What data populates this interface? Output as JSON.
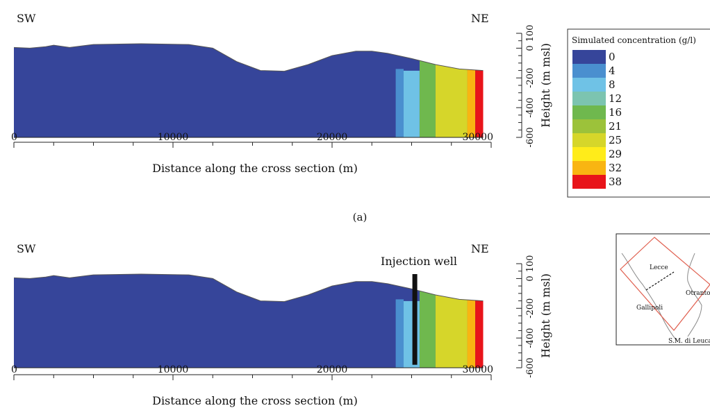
{
  "colors": {
    "blue": "#36459a",
    "outline": "#555555",
    "legend_border": "#333333",
    "map_border": "#e06050",
    "map_coast": "#888888",
    "well": "#111111"
  },
  "panels": [
    {
      "id": "a",
      "left_label": "SW",
      "right_label": "NE",
      "caption": "(a)",
      "xlabel": "Distance along the cross section (m)",
      "ylabel": "Height (m msl)",
      "x_ticks": [
        "0",
        "10000",
        "20000",
        "30000"
      ],
      "y_ticks": [
        "100",
        "0",
        "-200",
        "-400",
        "-600"
      ],
      "well_label": "",
      "injection_well_x": null
    },
    {
      "id": "b",
      "left_label": "SW",
      "right_label": "NE",
      "caption": "",
      "xlabel": "Distance along the cross section (m)",
      "ylabel": "Height (m msl)",
      "x_ticks": [
        "0",
        "10000",
        "20000",
        "30000"
      ],
      "y_ticks": [
        "100",
        "0",
        "-200",
        "-400",
        "-600"
      ],
      "well_label": "Injection well",
      "injection_well_x": 25200
    }
  ],
  "legend": {
    "title": "Simulated concentration (g/l)",
    "items": [
      {
        "label": "0",
        "color": "#36459a"
      },
      {
        "label": "4",
        "color": "#4a8fcf"
      },
      {
        "label": "8",
        "color": "#6fc2e6"
      },
      {
        "label": "12",
        "color": "#7cc4b0"
      },
      {
        "label": "16",
        "color": "#6fb84e"
      },
      {
        "label": "21",
        "color": "#9cc23a"
      },
      {
        "label": "25",
        "color": "#d6d62a"
      },
      {
        "label": "29",
        "color": "#ffec1a"
      },
      {
        "label": "32",
        "color": "#f9b512"
      },
      {
        "label": "38",
        "color": "#e8141a"
      }
    ]
  },
  "map": {
    "labels": {
      "lecce": "Lecce",
      "otranto": "Otranto",
      "gallipoli": "Gallipoli",
      "leuca": "S.M. di Leuca"
    }
  },
  "chart_data": [
    {
      "type": "heatmap",
      "title": "",
      "xlabel": "Distance along the cross section (m)",
      "ylabel": "Height (m msl)",
      "xlim": [
        0,
        30000
      ],
      "ylim": [
        -600,
        100
      ],
      "surface_profile": {
        "x": [
          0,
          1000,
          2000,
          2500,
          3500,
          5000,
          8000,
          11000,
          12500,
          14000,
          15500,
          17000,
          18500,
          20000,
          21500,
          22500,
          23500,
          25000,
          26500,
          28000,
          29500
        ],
        "y": [
          5,
          0,
          10,
          20,
          5,
          25,
          30,
          25,
          0,
          -90,
          -150,
          -155,
          -110,
          -50,
          -20,
          -20,
          -35,
          -70,
          -110,
          -140,
          -150
        ]
      },
      "concentration_front": {
        "x_start": [
          24000,
          24500,
          25500,
          26500,
          28500,
          29000
        ],
        "concentration": [
          4,
          8,
          16,
          25,
          32,
          38
        ]
      },
      "injection_well_x": null
    },
    {
      "type": "heatmap",
      "title": "",
      "xlabel": "Distance along the cross section (m)",
      "ylabel": "Height (m msl)",
      "xlim": [
        0,
        30000
      ],
      "ylim": [
        -600,
        100
      ],
      "surface_profile": {
        "x": [
          0,
          1000,
          2000,
          2500,
          3500,
          5000,
          8000,
          11000,
          12500,
          14000,
          15500,
          17000,
          18500,
          20000,
          21500,
          22500,
          23500,
          25000,
          26500,
          28000,
          29500
        ],
        "y": [
          5,
          0,
          10,
          20,
          5,
          25,
          30,
          25,
          0,
          -90,
          -150,
          -155,
          -110,
          -50,
          -20,
          -20,
          -35,
          -70,
          -110,
          -140,
          -150
        ]
      },
      "concentration_front": {
        "x_start": [
          24000,
          24500,
          25500,
          26500,
          28500,
          29000
        ],
        "concentration": [
          4,
          8,
          16,
          25,
          32,
          38
        ]
      },
      "injection_well_x": 25200
    }
  ]
}
